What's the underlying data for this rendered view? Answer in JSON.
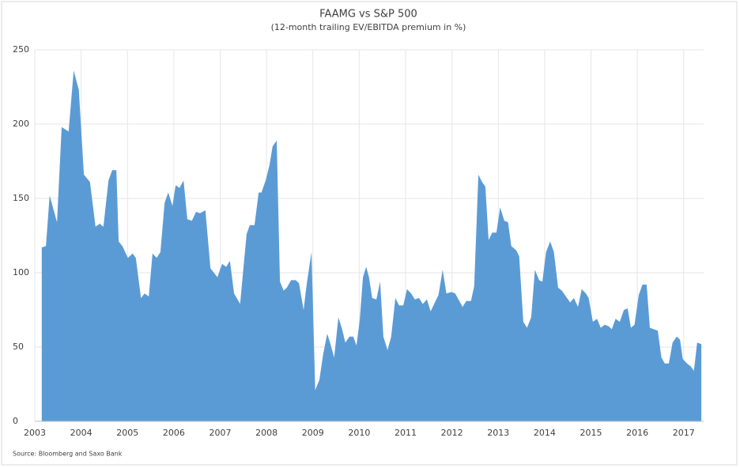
{
  "chart_data": {
    "type": "area",
    "title": "FAAMG vs S&P 500",
    "subtitle": "(12-month trailing EV/EBITDA premium in %)",
    "source": "Source: Bloomberg and Saxo Bank",
    "color": "#5b9bd5",
    "grid": true,
    "x": [
      2003.15,
      2003.24,
      2003.32,
      2003.48,
      2003.58,
      2003.73,
      2003.84,
      2003.95,
      2004.06,
      2004.19,
      2004.31,
      2004.4,
      2004.48,
      2004.59,
      2004.67,
      2004.76,
      2004.81,
      2004.89,
      2005.01,
      2005.11,
      2005.18,
      2005.29,
      2005.37,
      2005.46,
      2005.54,
      2005.63,
      2005.71,
      2005.8,
      2005.88,
      2005.97,
      2006.04,
      2006.12,
      2006.21,
      2006.29,
      2006.39,
      2006.48,
      2006.56,
      2006.68,
      2006.79,
      2006.94,
      2007.04,
      2007.13,
      2007.21,
      2007.3,
      2007.43,
      2007.57,
      2007.64,
      2007.74,
      2007.83,
      2007.89,
      2007.98,
      2008.06,
      2008.13,
      2008.22,
      2008.29,
      2008.37,
      2008.44,
      2008.53,
      2008.63,
      2008.7,
      2008.8,
      2008.87,
      2008.97,
      2009.05,
      2009.14,
      2009.22,
      2009.31,
      2009.38,
      2009.46,
      2009.55,
      2009.63,
      2009.7,
      2009.79,
      2009.87,
      2009.94,
      2010.01,
      2010.08,
      2010.15,
      2010.21,
      2010.28,
      2010.37,
      2010.45,
      2010.52,
      2010.61,
      2010.69,
      2010.78,
      2010.86,
      2010.95,
      2011.03,
      2011.12,
      2011.2,
      2011.29,
      2011.37,
      2011.46,
      2011.54,
      2011.63,
      2011.71,
      2011.8,
      2011.88,
      2011.99,
      2012.07,
      2012.14,
      2012.23,
      2012.31,
      2012.41,
      2012.48,
      2012.57,
      2012.65,
      2012.72,
      2012.79,
      2012.87,
      2012.96,
      2013.04,
      2013.13,
      2013.21,
      2013.28,
      2013.39,
      2013.45,
      2013.54,
      2013.62,
      2013.71,
      2013.79,
      2013.88,
      2013.95,
      2014.03,
      2014.12,
      2014.2,
      2014.29,
      2014.37,
      2014.46,
      2014.55,
      2014.63,
      2014.72,
      2014.8,
      2014.89,
      2014.95,
      2015.04,
      2015.13,
      2015.21,
      2015.3,
      2015.38,
      2015.45,
      2015.53,
      2015.62,
      2015.71,
      2015.79,
      2015.86,
      2015.94,
      2016.03,
      2016.11,
      2016.2,
      2016.27,
      2016.35,
      2016.44,
      2016.52,
      2016.59,
      2016.68,
      2016.76,
      2016.85,
      2016.92,
      2016.98,
      2017.07,
      2017.15,
      2017.22,
      2017.29,
      2017.38
    ],
    "values": [
      117,
      118,
      152,
      134,
      198,
      195,
      236,
      223,
      166,
      161,
      131,
      133,
      131,
      162,
      169,
      169,
      121,
      118,
      110,
      113,
      110,
      83,
      86,
      84,
      113,
      110,
      114,
      147,
      154,
      145,
      159,
      157,
      162,
      136,
      135,
      141,
      140,
      142,
      103,
      97,
      106,
      104,
      108,
      86,
      79,
      126,
      132,
      132,
      154,
      154,
      162,
      172,
      185,
      189,
      94,
      88,
      90,
      95,
      95,
      93,
      75,
      93,
      114,
      21,
      28,
      45,
      59,
      52,
      43,
      70,
      62,
      53,
      57,
      57,
      51,
      68,
      97,
      104,
      97,
      83,
      82,
      94,
      57,
      48,
      57,
      83,
      78,
      78,
      89,
      86,
      82,
      83,
      79,
      82,
      74,
      80,
      85,
      102,
      86,
      87,
      86,
      82,
      77,
      81,
      81,
      91,
      166,
      161,
      158,
      122,
      127,
      127,
      144,
      135,
      134,
      118,
      115,
      111,
      67,
      63,
      70,
      102,
      95,
      94,
      114,
      121,
      114,
      90,
      88,
      84,
      80,
      83,
      77,
      89,
      86,
      83,
      67,
      69,
      63,
      65,
      64,
      62,
      69,
      67,
      75,
      76,
      63,
      65,
      85,
      92,
      92,
      63,
      62,
      61,
      43,
      39,
      39,
      53,
      57,
      55,
      42,
      39,
      37,
      34,
      53,
      52
    ],
    "xlim": [
      2003,
      2017.43
    ],
    "xticks": [
      2003,
      2004,
      2005,
      2006,
      2007,
      2008,
      2009,
      2010,
      2011,
      2012,
      2013,
      2014,
      2015,
      2016,
      2017
    ],
    "ylim": [
      0,
      250
    ],
    "yticks": [
      0,
      50,
      100,
      150,
      200,
      250
    ]
  }
}
